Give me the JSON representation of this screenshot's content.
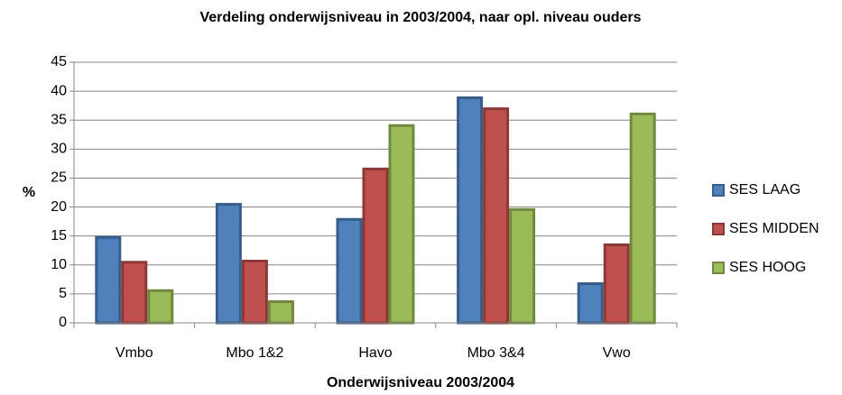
{
  "chart_data": {
    "type": "bar",
    "title": "Verdeling onderwijsniveau in 2003/2004, naar opl. niveau ouders",
    "x_label": "Onderwijsniveau 2003/2004",
    "y_label": "%",
    "categories": [
      "Vmbo",
      "Mbo 1&2",
      "Havo",
      "Mbo 3&4",
      "Vwo"
    ],
    "series": [
      {
        "name": "SES LAAG",
        "color": "#4f81bd",
        "edge_color": "#385d8a",
        "values": [
          15.0,
          20.7,
          18.1,
          39.1,
          7.0
        ]
      },
      {
        "name": "SES MIDDEN",
        "color": "#c0504d",
        "edge_color": "#8c3836",
        "values": [
          10.7,
          10.9,
          26.8,
          37.2,
          13.7
        ]
      },
      {
        "name": "SES HOOG",
        "color": "#9bbb59",
        "edge_color": "#71893f",
        "values": [
          5.8,
          3.9,
          34.3,
          19.8,
          36.3
        ]
      }
    ],
    "ylim": [
      0,
      45
    ],
    "yticks": [
      0,
      5,
      10,
      15,
      20,
      25,
      30,
      35,
      40,
      45
    ],
    "grid": true,
    "legend": "right"
  }
}
